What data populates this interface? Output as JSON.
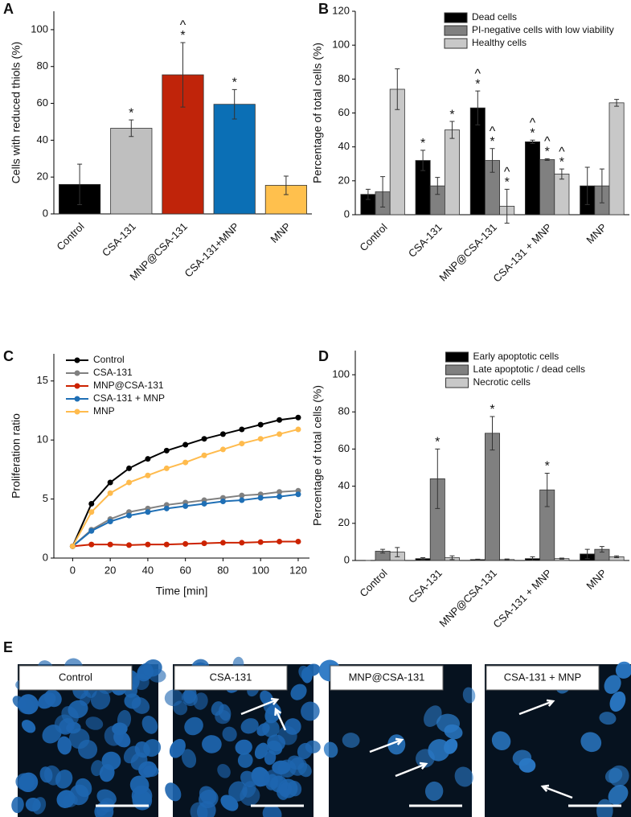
{
  "chart_data": [
    {
      "type": "bar",
      "panel": "A",
      "ylabel": "Cells with reduced thiols (%)",
      "categories": [
        "Control",
        "CSA-131",
        "MNP@CSA-131",
        "CSA-131+MNP",
        "MNP"
      ],
      "values": [
        16,
        46.5,
        75.5,
        59.5,
        15.5
      ],
      "errors": [
        11,
        4.5,
        17.5,
        8,
        5
      ],
      "colors": [
        "#000000",
        "#bfbfbf",
        "#c0240a",
        "#0b6fb5",
        "#ffc04d"
      ],
      "ylim": [
        0,
        110
      ],
      "yticks": [
        0,
        20,
        40,
        60,
        80,
        100
      ],
      "annotations": [
        {
          "x": "CSA-131",
          "text": [
            "*"
          ]
        },
        {
          "x": "MNP@CSA-131",
          "text": [
            "^",
            "*"
          ]
        },
        {
          "x": "CSA-131+MNP",
          "text": [
            "*"
          ]
        }
      ]
    },
    {
      "type": "bar",
      "panel": "B",
      "ylabel": "Percentage of total cells (%)",
      "legend": "upper right",
      "categories": [
        "Control",
        "CSA-131",
        "MNP@CSA-131",
        "CSA-131 + MNP",
        "MNP"
      ],
      "series": [
        {
          "name": "Dead cells",
          "color": "#000000",
          "values": [
            12,
            32,
            63,
            43,
            17
          ],
          "errors": [
            3,
            6,
            10,
            1,
            11
          ]
        },
        {
          "name": "PI-negative cells with low viability",
          "color": "#808080",
          "values": [
            13.5,
            17,
            32,
            32.5,
            17
          ],
          "errors": [
            9,
            5,
            7,
            0.5,
            10
          ]
        },
        {
          "name": "Healthy cells",
          "color": "#c8c8c8",
          "values": [
            74,
            50,
            5,
            24,
            66
          ],
          "errors": [
            12,
            5,
            10,
            3,
            2
          ]
        }
      ],
      "ylim": [
        0,
        120
      ],
      "yticks": [
        0,
        20,
        40,
        60,
        80,
        100,
        120
      ],
      "annotations": [
        {
          "series": "Dead cells",
          "x": "CSA-131",
          "text": [
            "*"
          ]
        },
        {
          "series": "Healthy cells",
          "x": "CSA-131",
          "text": [
            "*"
          ]
        },
        {
          "series": "Dead cells",
          "x": "MNP@CSA-131",
          "text": [
            "^",
            "*"
          ]
        },
        {
          "series": "PI-negative cells with low viability",
          "x": "MNP@CSA-131",
          "text": [
            "^",
            "*"
          ]
        },
        {
          "series": "Healthy cells",
          "x": "MNP@CSA-131",
          "text": [
            "^",
            "*"
          ]
        },
        {
          "series": "Dead cells",
          "x": "CSA-131 + MNP",
          "text": [
            "^",
            "*"
          ]
        },
        {
          "series": "PI-negative cells with low viability",
          "x": "CSA-131 + MNP",
          "text": [
            "^",
            "*"
          ]
        },
        {
          "series": "Healthy cells",
          "x": "CSA-131 + MNP",
          "text": [
            "^",
            "*"
          ]
        }
      ]
    },
    {
      "type": "line",
      "panel": "C",
      "xlabel": "Time [min]",
      "ylabel": "Proliferation ratio",
      "legend": "upper left",
      "x": [
        0,
        10,
        20,
        30,
        40,
        50,
        60,
        70,
        80,
        90,
        100,
        110,
        120
      ],
      "series": [
        {
          "name": "Control",
          "color": "#000000",
          "values": [
            1,
            4.6,
            6.4,
            7.6,
            8.4,
            9.1,
            9.6,
            10.1,
            10.5,
            10.9,
            11.3,
            11.7,
            11.9
          ]
        },
        {
          "name": "CSA-131",
          "color": "#808080",
          "values": [
            1,
            2.4,
            3.3,
            3.9,
            4.2,
            4.5,
            4.7,
            4.9,
            5.1,
            5.3,
            5.4,
            5.6,
            5.7
          ]
        },
        {
          "name": "MNP@CSA-131",
          "color": "#cc2200",
          "values": [
            1,
            1.15,
            1.15,
            1.1,
            1.15,
            1.15,
            1.2,
            1.25,
            1.3,
            1.3,
            1.35,
            1.4,
            1.4
          ]
        },
        {
          "name": "CSA-131 + MNP",
          "color": "#1f6fb5",
          "values": [
            1,
            2.3,
            3.1,
            3.6,
            3.9,
            4.2,
            4.4,
            4.6,
            4.8,
            4.9,
            5.1,
            5.2,
            5.4
          ]
        },
        {
          "name": "MNP",
          "color": "#ffbb4d",
          "values": [
            1,
            3.9,
            5.5,
            6.4,
            7.0,
            7.6,
            8.1,
            8.7,
            9.2,
            9.7,
            10.1,
            10.5,
            10.9
          ]
        }
      ],
      "xlim": [
        -10,
        126
      ],
      "xticks": [
        0,
        20,
        40,
        60,
        80,
        100,
        120
      ],
      "ylim": [
        0,
        17.3
      ],
      "yticks": [
        0,
        5,
        10,
        15
      ]
    },
    {
      "type": "bar",
      "panel": "D",
      "ylabel": "Percentage of total cells (%)",
      "legend": "upper center",
      "categories": [
        "Control",
        "CSA-131",
        "MNP@CSA-131",
        "CSA-131 + MNP",
        "MNP"
      ],
      "series": [
        {
          "name": "Early apoptotic cells",
          "color": "#000000",
          "values": [
            0,
            1,
            0.5,
            1,
            3.5
          ],
          "errors": [
            0,
            0.5,
            0.2,
            1,
            2.5
          ]
        },
        {
          "name": "Late apoptotic / dead cells",
          "color": "#808080",
          "values": [
            5,
            44,
            68.5,
            38,
            6
          ],
          "errors": [
            1,
            16,
            9,
            9,
            1.5
          ]
        },
        {
          "name": "Necrotic cells",
          "color": "#c8c8c8",
          "values": [
            4.5,
            1.5,
            0.5,
            1,
            2
          ],
          "errors": [
            2.5,
            1,
            0.3,
            0.3,
            0.5
          ]
        }
      ],
      "ylim": [
        0,
        113
      ],
      "yticks": [
        0,
        20,
        40,
        60,
        80,
        100
      ],
      "annotations": [
        {
          "series": "Late apoptotic / dead cells",
          "x": "CSA-131",
          "text": [
            "*"
          ]
        },
        {
          "series": "Late apoptotic / dead cells",
          "x": "MNP@CSA-131",
          "text": [
            "*"
          ]
        },
        {
          "series": "Late apoptotic / dead cells",
          "x": "CSA-131 + MNP",
          "text": [
            "*"
          ]
        }
      ]
    }
  ],
  "figure_panel_e": {
    "label": "E",
    "images": [
      {
        "title": "Control"
      },
      {
        "title": "CSA-131"
      },
      {
        "title": "MNP@CSA-131"
      },
      {
        "title": "CSA-131 + MNP"
      }
    ]
  }
}
